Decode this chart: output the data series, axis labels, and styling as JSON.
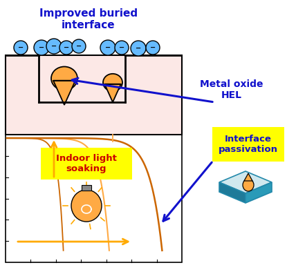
{
  "top_label": "Improved buried\ninterface",
  "metal_oxide_label": "Metal oxide\nHEL",
  "indoor_light_label": "Indoor light\nsoaking",
  "interface_passivation_label": "Interface\npassivation",
  "bg_color": "#ffffff",
  "top_panel_bg": "#fce8e6",
  "curve_color_dark": "#cc6600",
  "curve_color_light": "#ffaa44",
  "arrow_orange_color": "#ffaa00",
  "arrow_blue_color": "#1111cc",
  "label_blue_color": "#1111cc",
  "label_red_color": "#cc0000",
  "yellow_bg": "#ffff00",
  "blue_circle_color": "#66bbff",
  "figsize": [
    4.15,
    3.94
  ],
  "dpi": 100
}
